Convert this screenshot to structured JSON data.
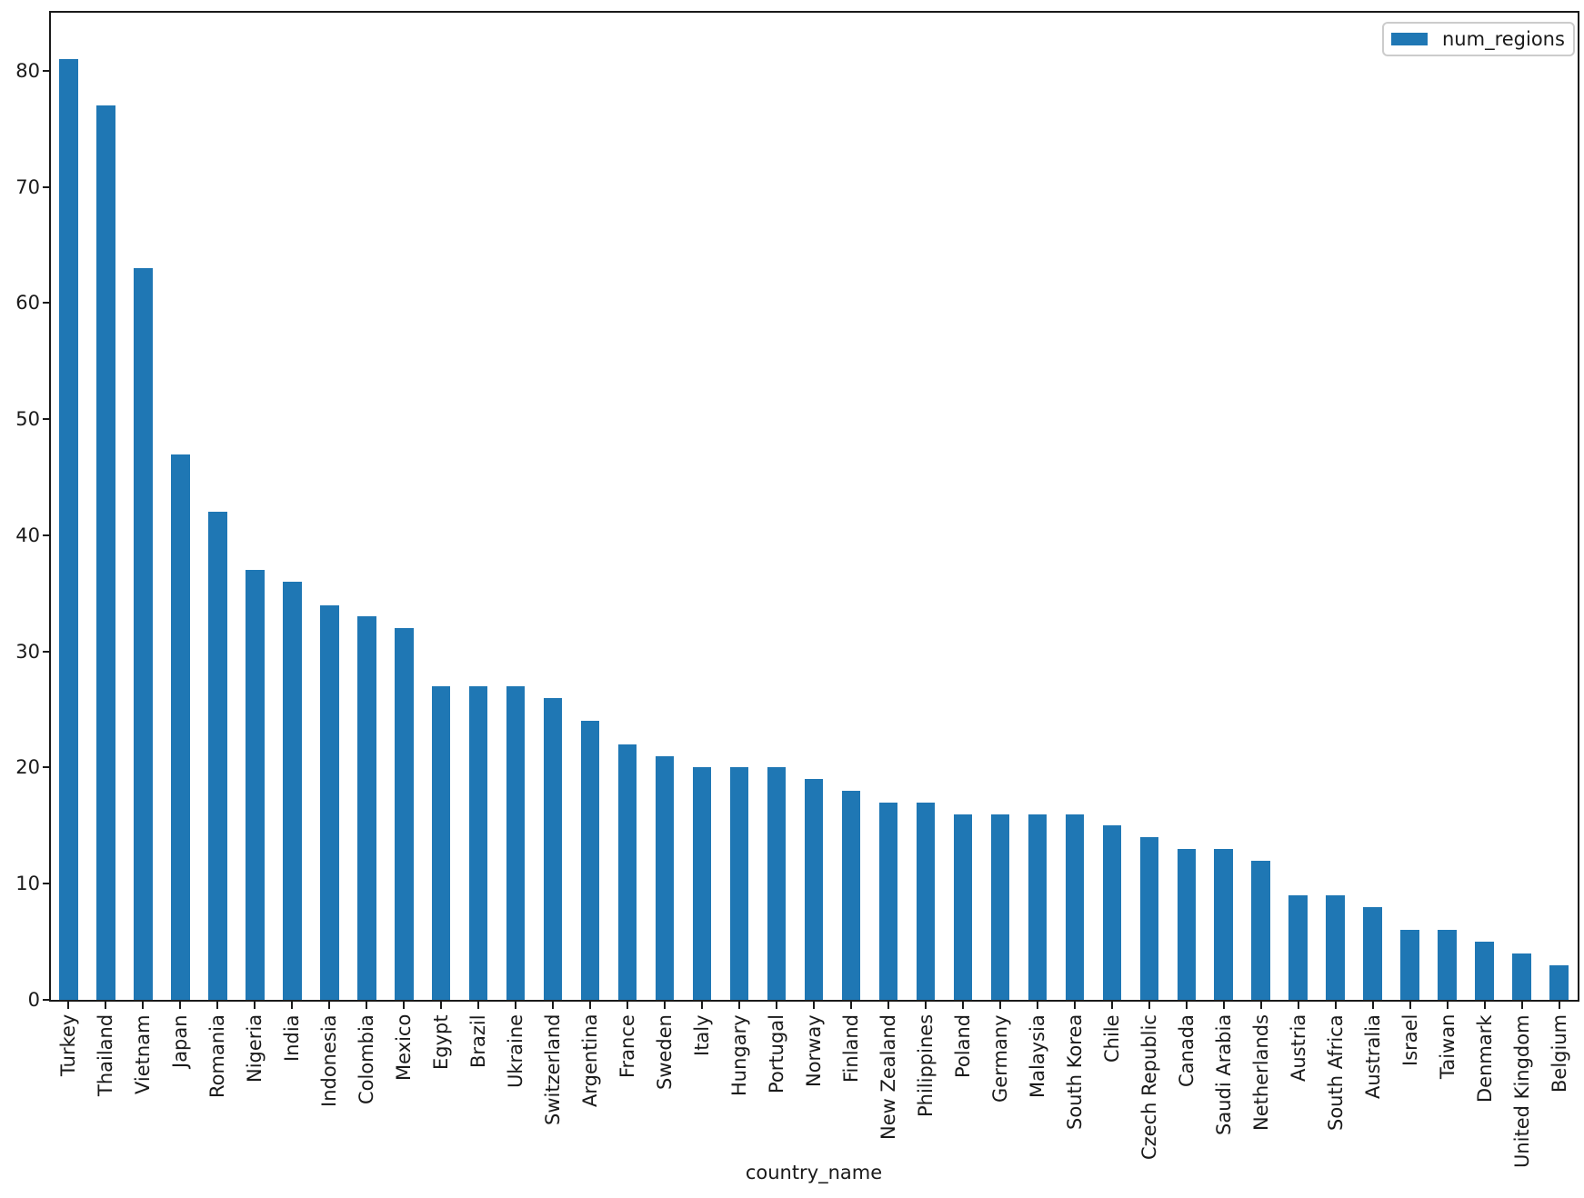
{
  "figure": {
    "background": "#ffffff",
    "axis_color": "#1a1a1a"
  },
  "chart_data": {
    "type": "bar",
    "title": "",
    "xlabel": "country_name",
    "ylabel": "",
    "categories": [
      "Turkey",
      "Thailand",
      "Vietnam",
      "Japan",
      "Romania",
      "Nigeria",
      "India",
      "Indonesia",
      "Colombia",
      "Mexico",
      "Egypt",
      "Brazil",
      "Ukraine",
      "Switzerland",
      "Argentina",
      "France",
      "Sweden",
      "Italy",
      "Hungary",
      "Portugal",
      "Norway",
      "Finland",
      "New Zealand",
      "Philippines",
      "Poland",
      "Germany",
      "Malaysia",
      "South Korea",
      "Chile",
      "Czech Republic",
      "Canada",
      "Saudi Arabia",
      "Netherlands",
      "Austria",
      "South Africa",
      "Australia",
      "Israel",
      "Taiwan",
      "Denmark",
      "United Kingdom",
      "Belgium"
    ],
    "series": [
      {
        "name": "num_regions",
        "color": "#1f77b4",
        "values": [
          81,
          77,
          63,
          47,
          42,
          37,
          36,
          34,
          33,
          32,
          27,
          27,
          27,
          26,
          24,
          22,
          21,
          20,
          20,
          20,
          19,
          18,
          17,
          17,
          16,
          16,
          16,
          16,
          15,
          14,
          13,
          13,
          12,
          9,
          9,
          8,
          6,
          6,
          5,
          4,
          3
        ]
      }
    ],
    "ylim": [
      0,
      85
    ],
    "yticks": [
      0,
      10,
      20,
      30,
      40,
      50,
      60,
      70,
      80
    ],
    "grid": false,
    "legend_position": "upper right",
    "x_tick_rotation": 90
  }
}
